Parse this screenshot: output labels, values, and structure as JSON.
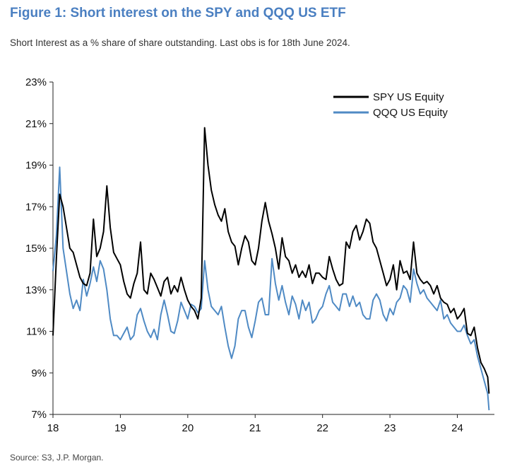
{
  "figure": {
    "title": "Figure 1: Short interest on the SPY and QQQ US ETF",
    "subtitle": "Short Interest as a % share of share outstanding. Last obs is for 18th June 2024.",
    "source": "Source: S3, J.P. Morgan."
  },
  "chart_data": {
    "type": "line",
    "title": "Figure 1: Short interest on the SPY and QQQ US ETF",
    "subtitle": "Short Interest as a % share of share outstanding. Last obs is for 18th June 2024.",
    "xlabel": "",
    "ylabel": "",
    "xlim": [
      2018.0,
      2024.55
    ],
    "ylim": [
      7,
      23
    ],
    "x_ticks": [
      2018,
      2019,
      2020,
      2021,
      2022,
      2023,
      2024
    ],
    "x_tick_labels": [
      "18",
      "19",
      "20",
      "21",
      "22",
      "23",
      "24"
    ],
    "y_ticks": [
      7,
      9,
      11,
      13,
      15,
      17,
      19,
      21,
      23
    ],
    "y_tick_labels": [
      "7%",
      "9%",
      "11%",
      "13%",
      "15%",
      "17%",
      "19%",
      "21%",
      "23%"
    ],
    "grid": false,
    "legend_position": "top-right",
    "x": [
      2018.0,
      2018.05,
      2018.1,
      2018.15,
      2018.2,
      2018.25,
      2018.3,
      2018.35,
      2018.4,
      2018.45,
      2018.5,
      2018.55,
      2018.6,
      2018.65,
      2018.7,
      2018.75,
      2018.8,
      2018.85,
      2018.9,
      2018.95,
      2019.0,
      2019.05,
      2019.1,
      2019.15,
      2019.2,
      2019.25,
      2019.3,
      2019.35,
      2019.4,
      2019.45,
      2019.5,
      2019.55,
      2019.6,
      2019.65,
      2019.7,
      2019.75,
      2019.8,
      2019.85,
      2019.9,
      2019.95,
      2020.0,
      2020.05,
      2020.1,
      2020.15,
      2020.2,
      2020.25,
      2020.3,
      2020.35,
      2020.4,
      2020.45,
      2020.5,
      2020.55,
      2020.6,
      2020.65,
      2020.7,
      2020.75,
      2020.8,
      2020.85,
      2020.9,
      2020.95,
      2021.0,
      2021.05,
      2021.1,
      2021.15,
      2021.2,
      2021.25,
      2021.3,
      2021.35,
      2021.4,
      2021.45,
      2021.5,
      2021.55,
      2021.6,
      2021.65,
      2021.7,
      2021.75,
      2021.8,
      2021.85,
      2021.9,
      2021.95,
      2022.0,
      2022.05,
      2022.1,
      2022.15,
      2022.2,
      2022.25,
      2022.3,
      2022.35,
      2022.4,
      2022.45,
      2022.5,
      2022.55,
      2022.6,
      2022.65,
      2022.7,
      2022.75,
      2022.8,
      2022.85,
      2022.9,
      2022.95,
      2023.0,
      2023.05,
      2023.1,
      2023.15,
      2023.2,
      2023.25,
      2023.3,
      2023.35,
      2023.4,
      2023.45,
      2023.5,
      2023.55,
      2023.6,
      2023.65,
      2023.7,
      2023.75,
      2023.8,
      2023.85,
      2023.9,
      2023.95,
      2024.0,
      2024.05,
      2024.1,
      2024.15,
      2024.2,
      2024.25,
      2024.3,
      2024.35,
      2024.4,
      2024.45,
      2024.47
    ],
    "series": [
      {
        "name": "SPY US Equity",
        "color": "#000000",
        "values": [
          10.8,
          14.5,
          17.6,
          17.0,
          16.0,
          15.0,
          14.8,
          14.2,
          13.6,
          13.3,
          13.2,
          13.8,
          16.4,
          14.6,
          15.0,
          15.8,
          18.0,
          16.0,
          14.8,
          14.5,
          14.2,
          13.4,
          12.8,
          12.6,
          13.3,
          13.8,
          15.3,
          13.0,
          12.8,
          13.8,
          13.5,
          13.1,
          12.7,
          13.4,
          13.6,
          12.8,
          13.2,
          12.9,
          13.6,
          13.0,
          12.5,
          12.2,
          12.0,
          11.6,
          12.6,
          20.8,
          19.0,
          17.8,
          17.1,
          16.6,
          16.3,
          16.9,
          15.8,
          15.3,
          15.1,
          14.2,
          15.0,
          15.6,
          15.3,
          14.4,
          14.2,
          15.0,
          16.3,
          17.2,
          16.3,
          15.7,
          15.0,
          14.0,
          15.5,
          14.6,
          14.4,
          13.8,
          14.2,
          13.6,
          13.9,
          13.6,
          14.2,
          13.3,
          13.8,
          13.8,
          13.6,
          13.5,
          14.6,
          14.0,
          13.5,
          13.2,
          13.3,
          15.3,
          15.0,
          15.8,
          16.1,
          15.4,
          15.8,
          16.4,
          16.2,
          15.3,
          15.0,
          14.4,
          13.8,
          13.2,
          13.5,
          14.2,
          13.0,
          14.4,
          13.8,
          13.9,
          13.5,
          15.3,
          13.8,
          13.5,
          13.3,
          13.4,
          13.2,
          12.8,
          13.2,
          12.6,
          12.4,
          12.3,
          11.9,
          12.1,
          11.6,
          11.8,
          12.1,
          10.9,
          10.8,
          11.2,
          10.2,
          9.5,
          9.2,
          8.8,
          8.0
        ]
      },
      {
        "name": "QQQ US Equity",
        "color": "#4f8ac4",
        "values": [
          13.9,
          15.6,
          18.9,
          15.0,
          13.9,
          12.8,
          12.1,
          12.5,
          12.0,
          13.5,
          12.7,
          13.3,
          14.1,
          13.4,
          14.4,
          14.0,
          13.0,
          11.6,
          10.8,
          10.8,
          10.6,
          10.9,
          11.2,
          10.6,
          10.8,
          11.8,
          12.1,
          11.5,
          11.0,
          10.7,
          11.1,
          10.6,
          11.8,
          12.5,
          11.8,
          11.0,
          10.9,
          11.5,
          12.4,
          12.0,
          11.6,
          12.3,
          12.2,
          11.9,
          12.1,
          14.4,
          13.0,
          12.2,
          12.0,
          11.8,
          12.2,
          11.2,
          10.3,
          9.7,
          10.3,
          11.6,
          12.0,
          12.0,
          11.2,
          10.7,
          11.5,
          12.4,
          12.6,
          11.8,
          11.8,
          14.5,
          13.3,
          12.5,
          13.2,
          12.4,
          11.8,
          12.7,
          12.3,
          11.6,
          12.5,
          12.0,
          12.4,
          11.4,
          11.6,
          12.0,
          12.2,
          12.8,
          13.2,
          12.4,
          12.2,
          12.0,
          12.8,
          12.8,
          12.2,
          12.7,
          12.2,
          12.4,
          11.8,
          11.6,
          11.6,
          12.5,
          12.8,
          12.5,
          11.8,
          11.5,
          12.1,
          11.8,
          12.4,
          12.6,
          13.2,
          13.0,
          12.4,
          14.0,
          13.3,
          12.8,
          13.0,
          12.6,
          12.4,
          12.2,
          12.0,
          12.5,
          11.6,
          11.8,
          11.4,
          11.2,
          11.0,
          11.0,
          11.3,
          10.8,
          10.4,
          10.6,
          9.8,
          9.2,
          8.6,
          8.0,
          7.2
        ]
      }
    ]
  }
}
